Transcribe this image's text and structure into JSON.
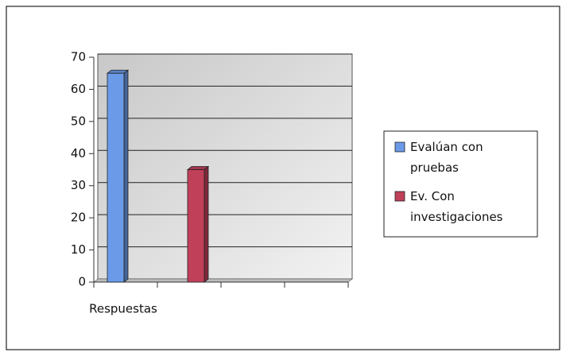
{
  "chart_data": {
    "type": "bar",
    "categories": [
      "Respuestas"
    ],
    "series": [
      {
        "name": "Evalúan con pruebas",
        "color": "#6b9be8",
        "values": [
          65
        ]
      },
      {
        "name": "Ev. Con investigaciones",
        "color": "#c0405a",
        "values": [
          35
        ]
      }
    ],
    "ylim": [
      0,
      70
    ],
    "yticks": [
      0,
      10,
      20,
      30,
      40,
      50,
      60,
      70
    ],
    "grid": true,
    "legend": "right"
  }
}
